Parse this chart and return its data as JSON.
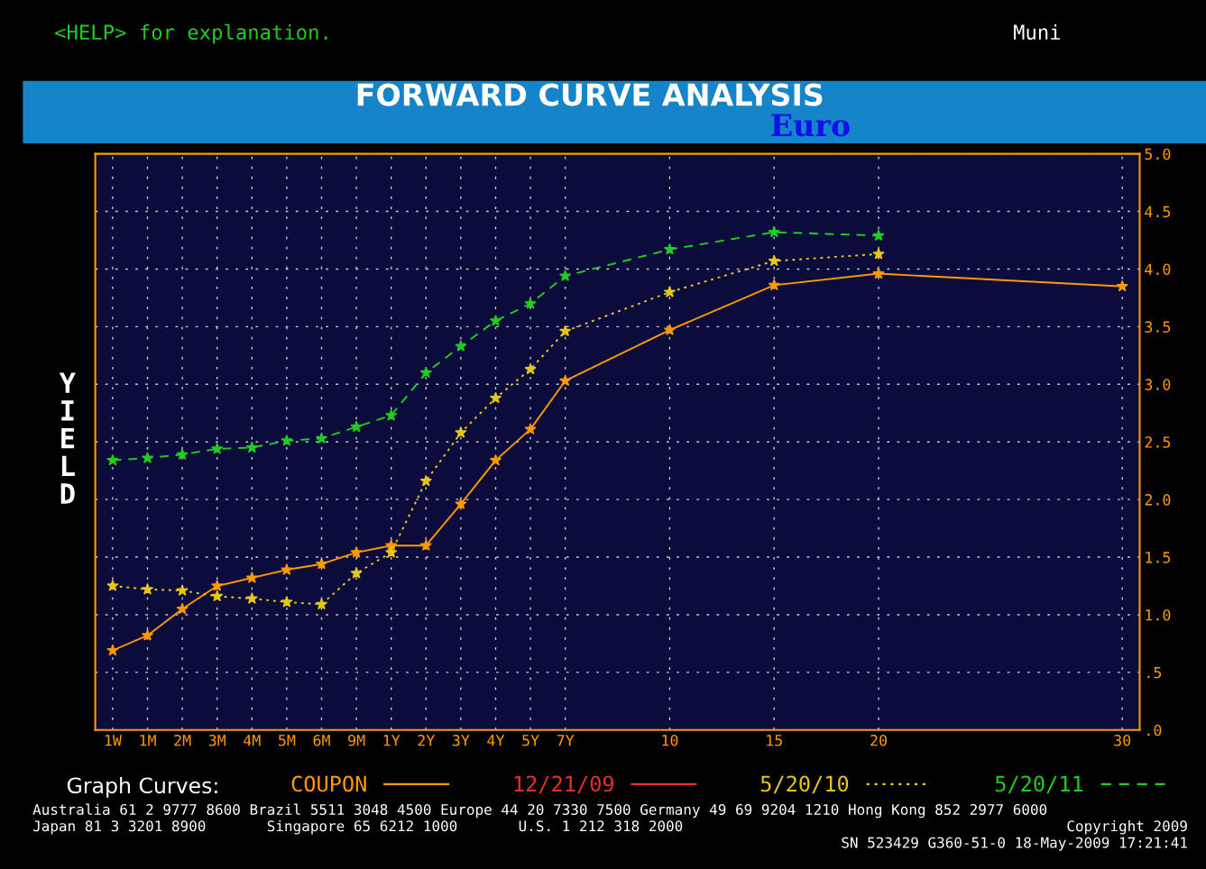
{
  "chart_data": {
    "type": "line",
    "title": "FORWARD CURVE ANALYSIS",
    "subtitle": "Euro",
    "ylabel": "YIELD",
    "legend_title": "Graph Curves:",
    "categories": [
      "1W",
      "1M",
      "2M",
      "3M",
      "4M",
      "5M",
      "6M",
      "9M",
      "1Y",
      "2Y",
      "3Y",
      "4Y",
      "5Y",
      "7Y",
      null,
      null,
      "10",
      null,
      null,
      "15",
      null,
      null,
      "20",
      null,
      null,
      null,
      null,
      null,
      null,
      "30"
    ],
    "series": [
      {
        "name": "COUPON",
        "color": "#ff9900",
        "line_style": "solid",
        "values": [
          0.69,
          0.82,
          1.05,
          1.25,
          1.32,
          1.39,
          1.44,
          1.54,
          1.6,
          1.6,
          1.96,
          2.34,
          2.61,
          3.03,
          null,
          null,
          3.47,
          null,
          null,
          3.86,
          null,
          null,
          3.96,
          null,
          null,
          null,
          null,
          null,
          null,
          3.85
        ]
      },
      {
        "name": "12/21/09",
        "color": "#e8302a",
        "line_style": "solid",
        "values": [
          null,
          null,
          null,
          null,
          null,
          null,
          null,
          null,
          null,
          null,
          null,
          null,
          null,
          null,
          null,
          null,
          null,
          null,
          null,
          null,
          null,
          null,
          null,
          null,
          null,
          null,
          null,
          null,
          null,
          null
        ]
      },
      {
        "name": "5/20/10",
        "color": "#e6c619",
        "line_style": "dotted",
        "values": [
          1.25,
          1.22,
          1.21,
          1.16,
          1.14,
          1.11,
          1.09,
          1.36,
          1.54,
          2.16,
          2.58,
          2.88,
          3.13,
          3.46,
          null,
          null,
          3.8,
          null,
          null,
          4.07,
          null,
          null,
          4.13,
          null,
          null,
          null,
          null,
          null,
          null,
          null
        ]
      },
      {
        "name": "5/20/11",
        "color": "#22cc22",
        "line_style": "dashed",
        "values": [
          2.34,
          2.36,
          2.39,
          2.44,
          2.45,
          2.51,
          2.53,
          2.63,
          2.73,
          3.1,
          3.33,
          3.55,
          3.7,
          3.94,
          null,
          null,
          4.17,
          null,
          null,
          4.32,
          null,
          null,
          4.29,
          null,
          null,
          null,
          null,
          null,
          null,
          null
        ]
      }
    ],
    "ylim": [
      0,
      5
    ],
    "yticks": [
      {
        "value": 0,
        "label": ".0"
      },
      {
        "value": 0.5,
        "label": ".5"
      },
      {
        "value": 1,
        "label": "1.0"
      },
      {
        "value": 1.5,
        "label": "1.5"
      },
      {
        "value": 2,
        "label": "2.0"
      },
      {
        "value": 2.5,
        "label": "2.5"
      },
      {
        "value": 3,
        "label": "3.0"
      },
      {
        "value": 3.5,
        "label": "3.5"
      },
      {
        "value": 4,
        "label": "4.0"
      },
      {
        "value": 4.5,
        "label": "4.5"
      },
      {
        "value": 5,
        "label": "5.0"
      }
    ],
    "grid": true,
    "legend": "bottom",
    "marker": "star",
    "annotations": [
      "<HELP> for explanation.",
      "Muni",
      "Australia 61 2 9777 8600 Brazil 5511 3048 4500 Europe 44 20 7330 7500 Germany 49 69 9204 1210 Hong Kong 852 2977 6000",
      "Japan 81 3 3201 8900       Singapore 65 6212 1000       U.S. 1 212 318 2000",
      "Copyright 2009",
      "SN 523429 G360-51-0 18-May-2009 17:21:41"
    ]
  }
}
